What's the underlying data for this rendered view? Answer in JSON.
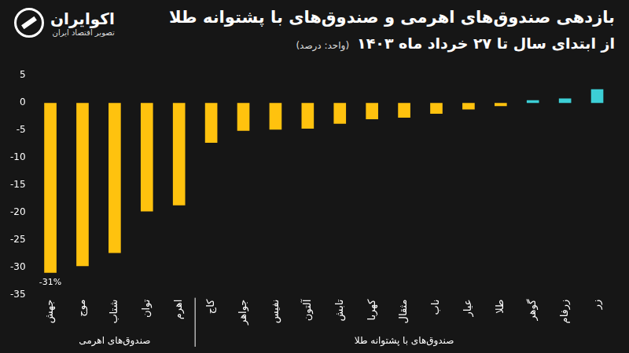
{
  "chart_data": {
    "type": "bar",
    "title": "بازدهی صندوق‌های اهرمی و صندوق‌های با پشتوانه طلا",
    "subtitle": "از ابتدای سال تا ۲۷ خرداد ماه ۱۴۰۳",
    "unit_label": "(واحد: درصد)",
    "logo": {
      "name": "اکوایران",
      "tagline": "تصویر اقتصاد ایران"
    },
    "categories": [
      "جهش",
      "موج",
      "شتاب",
      "توان",
      "اهرم",
      "کاج",
      "جواهر",
      "نفیس",
      "آلتون",
      "تابش",
      "کهربا",
      "مثقال",
      "ناب",
      "عیار",
      "طلا",
      "گوهر",
      "زرفام",
      "زر"
    ],
    "values": [
      -31,
      -29.8,
      -27.4,
      -19.8,
      -18.7,
      -7.3,
      -5.1,
      -4.9,
      -4.7,
      -3.8,
      -3.0,
      -2.7,
      -2.0,
      -1.2,
      -0.6,
      0.5,
      0.8,
      2.5
    ],
    "colors": [
      "#ffc20e",
      "#ffc20e",
      "#ffc20e",
      "#ffc20e",
      "#ffc20e",
      "#ffc20e",
      "#ffc20e",
      "#ffc20e",
      "#ffc20e",
      "#ffc20e",
      "#ffc20e",
      "#ffc20e",
      "#ffc20e",
      "#ffc20e",
      "#ffc20e",
      "#3ccfd6",
      "#3ccfd6",
      "#3ccfd6"
    ],
    "ylim": [
      -35,
      5
    ],
    "yticks": [
      -35,
      -30,
      -25,
      -20,
      -15,
      -10,
      -5,
      0,
      5
    ],
    "grid": false,
    "annotations": [
      {
        "text": "-31%",
        "category": "جهش"
      }
    ],
    "groups": [
      {
        "label": "صندوق‌های اهرمی",
        "from": "جهش",
        "to": "اهرم"
      },
      {
        "label": "صندوق‌های با پشتوانه طلا",
        "from": "کاج",
        "to": "زر"
      }
    ]
  }
}
